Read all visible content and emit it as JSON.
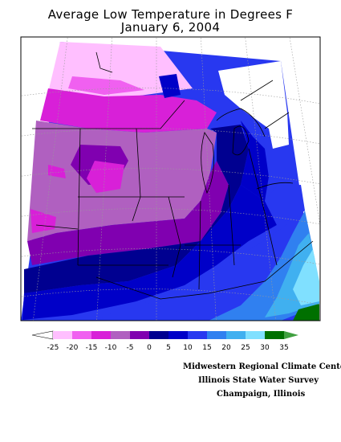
{
  "title": {
    "line1": "Average Low Temperature in Degrees F",
    "line2": "January 6, 2004"
  },
  "legend": {
    "ticks": [
      "-25",
      "-20",
      "-15",
      "-10",
      "-5",
      "0",
      "5",
      "10",
      "15",
      "20",
      "25",
      "30",
      "35"
    ],
    "colors": [
      "#ffffff",
      "#ffbfff",
      "#f060f0",
      "#d820d8",
      "#b060c0",
      "#8000b0",
      "#000090",
      "#0000c8",
      "#2838f0",
      "#3080f0",
      "#40b0f0",
      "#80e0ff",
      "#007000",
      "#40a040"
    ]
  },
  "credits": {
    "line1": "Midwestern Regional Climate Center",
    "line2": "Illinois State Water Survey",
    "line3": "Champaign, Illinois"
  }
}
